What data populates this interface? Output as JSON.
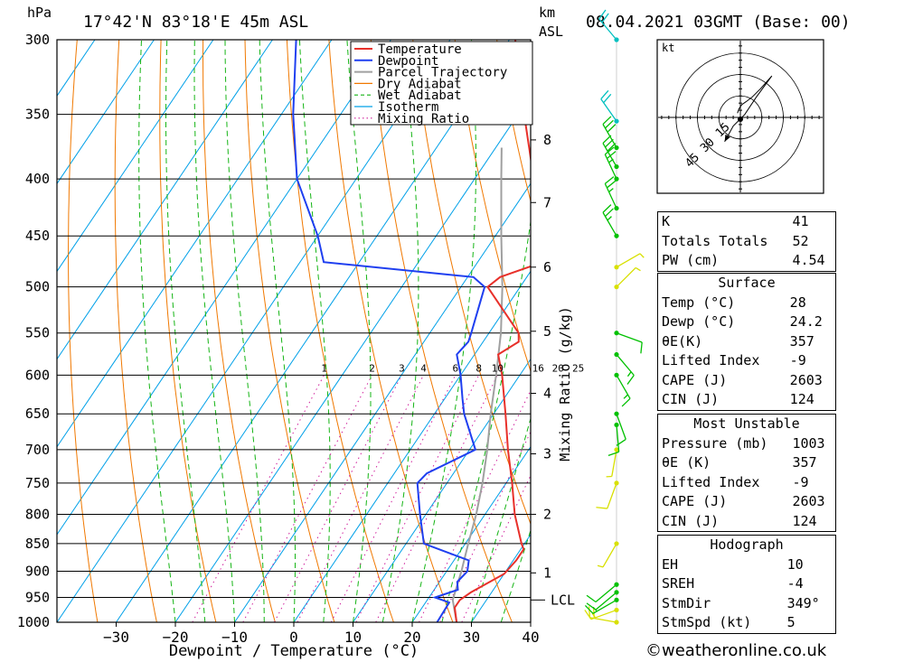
{
  "header": {
    "pressure_unit": "hPa",
    "location": "17°42'N 83°18'E 45m ASL",
    "km_label": "km",
    "asl_label": "ASL",
    "datetime": "08.04.2021 03GMT (Base: 00)"
  },
  "chart_data": {
    "type": "skew-t",
    "xlabel": "Dewpoint / Temperature (°C)",
    "ylabel_right": "Mixing Ratio (g/kg)",
    "pressure_ticks": [
      300,
      350,
      400,
      450,
      500,
      550,
      600,
      650,
      700,
      750,
      800,
      850,
      900,
      950,
      1000
    ],
    "pressure_range": [
      300,
      1000
    ],
    "temperature_ticks": [
      -30,
      -20,
      -10,
      0,
      10,
      20,
      30,
      40
    ],
    "temperature_range_at_1000hPa": [
      -40,
      40
    ],
    "km_ticks": [
      {
        "km": "1",
        "p": 903
      },
      {
        "km": "2",
        "p": 800
      },
      {
        "km": "3",
        "p": 706
      },
      {
        "km": "4",
        "p": 623
      },
      {
        "km": "5",
        "p": 548
      },
      {
        "km": "6",
        "p": 480
      },
      {
        "km": "7",
        "p": 420
      },
      {
        "km": "8",
        "p": 369
      }
    ],
    "lcl": {
      "label": "LCL",
      "p": 955
    },
    "mixing_ratio_labels": [
      "1",
      "2",
      "3",
      "4",
      "6",
      "8",
      "10",
      "16",
      "20",
      "25"
    ],
    "mixing_ratio_values": [
      1,
      2,
      3,
      4,
      6,
      8,
      10,
      16,
      20,
      25
    ],
    "isotherms": [
      -110,
      -100,
      -90,
      -80,
      -70,
      -60,
      -50,
      -40,
      -30,
      -20,
      -10,
      0,
      10,
      20,
      30,
      40
    ],
    "dry_adiabats_theta_K": [
      240,
      250,
      260,
      270,
      280,
      290,
      300,
      310,
      320,
      330,
      340,
      350,
      360,
      370,
      380,
      390,
      400,
      410,
      420,
      430,
      440,
      450,
      460,
      470
    ],
    "wet_adiabats_theta_w_C": [
      -20,
      -15,
      -10,
      -5,
      0,
      5,
      10,
      15,
      20,
      25,
      30,
      35
    ],
    "legend": [
      {
        "name": "Temperature",
        "color": "#e8302a",
        "style": "solid"
      },
      {
        "name": "Dewpoint",
        "color": "#1f3ff0",
        "style": "solid"
      },
      {
        "name": "Parcel Trajectory",
        "color": "#a0a0a0",
        "style": "solid"
      },
      {
        "name": "Dry Adiabat",
        "color": "#f07800",
        "style": "solid"
      },
      {
        "name": "Wet Adiabat",
        "color": "#14b414",
        "style": "dashed"
      },
      {
        "name": "Isotherm",
        "color": "#00a0e8",
        "style": "solid"
      },
      {
        "name": "Mixing Ratio",
        "color": "#d0209c",
        "style": "dotted"
      }
    ],
    "temperature_profile": [
      [
        1000,
        27.5
      ],
      [
        970,
        25.5
      ],
      [
        955,
        25.5
      ],
      [
        940,
        26.5
      ],
      [
        905,
        30
      ],
      [
        880,
        30.5
      ],
      [
        860,
        30.5
      ],
      [
        850,
        29.5
      ],
      [
        800,
        25
      ],
      [
        750,
        21
      ],
      [
        700,
        16.5
      ],
      [
        650,
        12
      ],
      [
        600,
        7
      ],
      [
        575,
        4
      ],
      [
        560,
        6
      ],
      [
        550,
        5
      ],
      [
        500,
        -5.5
      ],
      [
        490,
        -4.5
      ],
      [
        475,
        1
      ],
      [
        450,
        -2
      ],
      [
        400,
        -10
      ],
      [
        350,
        -19
      ],
      [
        320,
        -25
      ],
      [
        300,
        -29
      ]
    ],
    "dewpoint_profile": [
      [
        1000,
        24.2
      ],
      [
        960,
        24
      ],
      [
        950,
        21
      ],
      [
        935,
        24
      ],
      [
        920,
        23
      ],
      [
        900,
        23.5
      ],
      [
        880,
        22.5
      ],
      [
        850,
        13
      ],
      [
        800,
        9
      ],
      [
        750,
        5
      ],
      [
        735,
        5.5
      ],
      [
        700,
        11
      ],
      [
        650,
        5
      ],
      [
        630,
        3
      ],
      [
        600,
        0
      ],
      [
        575,
        -3
      ],
      [
        560,
        -2.5
      ],
      [
        550,
        -3
      ],
      [
        500,
        -6
      ],
      [
        490,
        -9
      ],
      [
        475,
        -36
      ],
      [
        450,
        -40
      ],
      [
        400,
        -50
      ],
      [
        350,
        -58
      ],
      [
        300,
        -66
      ]
    ],
    "parcel_profile": [
      [
        1000,
        27.5
      ],
      [
        955,
        24.3
      ],
      [
        900,
        22.5
      ],
      [
        850,
        20.5
      ],
      [
        800,
        18.5
      ],
      [
        750,
        16
      ],
      [
        700,
        13
      ],
      [
        650,
        9.5
      ],
      [
        600,
        6
      ],
      [
        550,
        2
      ],
      [
        500,
        -3
      ],
      [
        450,
        -9
      ],
      [
        400,
        -15.5
      ],
      [
        375,
        -19
      ]
    ],
    "wind_barbs": [
      {
        "p": 1000,
        "dir": 280,
        "kt": 20,
        "color": "#d8e000"
      },
      {
        "p": 975,
        "dir": 250,
        "kt": 15,
        "color": "#d8e000"
      },
      {
        "p": 955,
        "dir": 240,
        "kt": 15,
        "color": "#00c000"
      },
      {
        "p": 940,
        "dir": 230,
        "kt": 10,
        "color": "#00c000"
      },
      {
        "p": 925,
        "dir": 230,
        "kt": 10,
        "color": "#00c000"
      },
      {
        "p": 850,
        "dir": 210,
        "kt": 5,
        "color": "#d8e000"
      },
      {
        "p": 750,
        "dir": 200,
        "kt": 10,
        "color": "#d8e000"
      },
      {
        "p": 700,
        "dir": 190,
        "kt": 5,
        "color": "#d8e000"
      },
      {
        "p": 665,
        "dir": 175,
        "kt": 10,
        "color": "#00c000"
      },
      {
        "p": 650,
        "dir": 160,
        "kt": 10,
        "color": "#00c000"
      },
      {
        "p": 600,
        "dir": 150,
        "kt": 15,
        "color": "#00c000"
      },
      {
        "p": 575,
        "dir": 140,
        "kt": 15,
        "color": "#00c000"
      },
      {
        "p": 550,
        "dir": 110,
        "kt": 10,
        "color": "#00c000"
      },
      {
        "p": 500,
        "dir": 45,
        "kt": 5,
        "color": "#d8e000"
      },
      {
        "p": 480,
        "dir": 60,
        "kt": 5,
        "color": "#d8e000"
      },
      {
        "p": 450,
        "dir": 330,
        "kt": 25,
        "color": "#00c000"
      },
      {
        "p": 425,
        "dir": 335,
        "kt": 25,
        "color": "#00c000"
      },
      {
        "p": 400,
        "dir": 335,
        "kt": 25,
        "color": "#00c000"
      },
      {
        "p": 390,
        "dir": 330,
        "kt": 30,
        "color": "#00c000"
      },
      {
        "p": 375,
        "dir": 330,
        "kt": 30,
        "color": "#00c000"
      },
      {
        "p": 355,
        "dir": 325,
        "kt": 20,
        "color": "#00c0c0"
      },
      {
        "p": 300,
        "dir": 320,
        "kt": 20,
        "color": "#00c0c0"
      }
    ]
  },
  "hodograph": {
    "unit": "kt",
    "ring_labels": [
      "15",
      "30",
      "45"
    ],
    "ring_values": [
      15,
      30,
      45
    ],
    "range_kt": 60,
    "trace_uv_kt": [
      [
        -2,
        3
      ],
      [
        -1,
        6
      ],
      [
        1,
        9
      ],
      [
        4,
        11
      ],
      [
        8,
        14
      ],
      [
        14,
        20
      ],
      [
        22,
        29
      ],
      [
        11,
        14
      ],
      [
        3,
        2
      ],
      [
        -5,
        -6
      ],
      [
        -11,
        -17
      ]
    ]
  },
  "indices": {
    "K": {
      "label": "K",
      "value": "41"
    },
    "TT": {
      "label": "Totals Totals",
      "value": "52"
    },
    "PW": {
      "label": "PW (cm)",
      "value": "4.54"
    }
  },
  "surface": {
    "title": "Surface",
    "temp": {
      "label": "Temp (°C)",
      "value": "28"
    },
    "dewp": {
      "label": "Dewp (°C)",
      "value": "24.2"
    },
    "theta_e": {
      "label": "θE(K)",
      "value": "357"
    },
    "lifted": {
      "label": "Lifted Index",
      "value": "-9"
    },
    "cape": {
      "label": "CAPE (J)",
      "value": "2603"
    },
    "cin": {
      "label": "CIN (J)",
      "value": "124"
    }
  },
  "most_unstable": {
    "title": "Most Unstable",
    "pressure": {
      "label": "Pressure (mb)",
      "value": "1003"
    },
    "theta_e": {
      "label": "θE (K)",
      "value": "357"
    },
    "lifted": {
      "label": "Lifted Index",
      "value": "-9"
    },
    "cape": {
      "label": "CAPE (J)",
      "value": "2603"
    },
    "cin": {
      "label": "CIN (J)",
      "value": "124"
    }
  },
  "hodo_stats": {
    "title": "Hodograph",
    "eh": {
      "label": "EH",
      "value": "10"
    },
    "sreh": {
      "label": "SREH",
      "value": "-4"
    },
    "stmdir": {
      "label": "StmDir",
      "value": "349°"
    },
    "stmspd": {
      "label": "StmSpd (kt)",
      "value": "5"
    }
  },
  "footer": {
    "copyright": "©weatheronline.co.uk"
  }
}
